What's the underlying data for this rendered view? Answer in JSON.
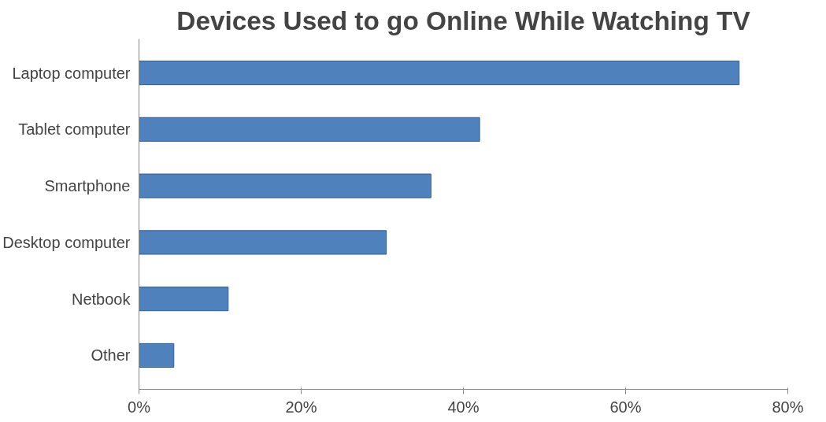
{
  "chart_data": {
    "type": "bar",
    "orientation": "horizontal",
    "title": "Devices Used to go Online While Watching TV",
    "categories": [
      "Laptop computer",
      "Tablet computer",
      "Smartphone",
      "Desktop computer",
      "Netbook",
      "Other"
    ],
    "values": [
      74,
      42,
      36,
      30.5,
      11,
      4.3
    ],
    "color": "#4f81bd",
    "xlim": [
      0,
      80
    ],
    "xticks": [
      {
        "value": 0,
        "label": "0%"
      },
      {
        "value": 20,
        "label": "20%"
      },
      {
        "value": 40,
        "label": "40%"
      },
      {
        "value": 60,
        "label": "60%"
      },
      {
        "value": 80,
        "label": "80%"
      }
    ],
    "grid": false
  }
}
